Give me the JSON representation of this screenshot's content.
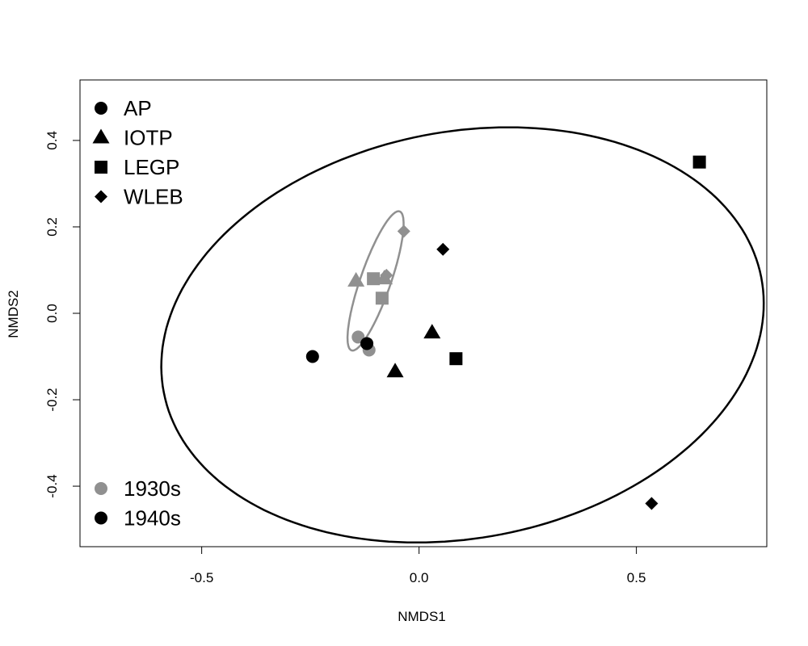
{
  "chart_data": {
    "type": "scatter",
    "title": "",
    "xlabel": "NMDS1",
    "ylabel": "NMDS2",
    "xlim": [
      -0.78,
      0.8
    ],
    "ylim": [
      -0.54,
      0.54
    ],
    "xticks": [
      -0.5,
      0.0,
      0.5
    ],
    "xtick_labels": [
      "-0.5",
      "0.0",
      "0.5"
    ],
    "yticks": [
      -0.4,
      -0.2,
      0.0,
      0.2,
      0.4
    ],
    "ytick_labels": [
      "-0.4",
      "-0.2",
      "0.0",
      "0.2",
      "0.4"
    ],
    "grid": false,
    "shape_legend": {
      "placement": "top-left",
      "entries": [
        {
          "label": "AP",
          "shape": "circle"
        },
        {
          "label": "IOTP",
          "shape": "triangle"
        },
        {
          "label": "LEGP",
          "shape": "square"
        },
        {
          "label": "WLEB",
          "shape": "diamond"
        }
      ]
    },
    "color_legend": {
      "placement": "bottom-left",
      "entries": [
        {
          "label": "1930s",
          "color": "#909090"
        },
        {
          "label": "1940s",
          "color": "#000000"
        }
      ]
    },
    "series": [
      {
        "name": "1930s",
        "color": "#909090",
        "points": [
          {
            "group": "AP",
            "shape": "circle",
            "x": -0.14,
            "y": -0.055
          },
          {
            "group": "AP",
            "shape": "circle",
            "x": -0.115,
            "y": -0.085
          },
          {
            "group": "IOTP",
            "shape": "triangle",
            "x": -0.145,
            "y": 0.075
          },
          {
            "group": "IOTP",
            "shape": "triangle",
            "x": -0.08,
            "y": 0.08
          },
          {
            "group": "LEGP",
            "shape": "square",
            "x": -0.105,
            "y": 0.08
          },
          {
            "group": "LEGP",
            "shape": "square",
            "x": -0.085,
            "y": 0.035
          },
          {
            "group": "WLEB",
            "shape": "diamond",
            "x": -0.075,
            "y": 0.088
          },
          {
            "group": "WLEB",
            "shape": "diamond",
            "x": -0.035,
            "y": 0.19
          }
        ],
        "ellipse": {
          "center_x": -0.1,
          "center_y": 0.075,
          "semi_major": 0.17,
          "semi_minor": 0.035,
          "angle_deg": 71
        }
      },
      {
        "name": "1940s",
        "color": "#000000",
        "points": [
          {
            "group": "AP",
            "shape": "circle",
            "x": -0.245,
            "y": -0.1
          },
          {
            "group": "AP",
            "shape": "circle",
            "x": -0.12,
            "y": -0.07
          },
          {
            "group": "IOTP",
            "shape": "triangle",
            "x": -0.055,
            "y": -0.135
          },
          {
            "group": "IOTP",
            "shape": "triangle",
            "x": 0.03,
            "y": -0.045
          },
          {
            "group": "LEGP",
            "shape": "square",
            "x": 0.085,
            "y": -0.105
          },
          {
            "group": "LEGP",
            "shape": "square",
            "x": 0.645,
            "y": 0.35
          },
          {
            "group": "WLEB",
            "shape": "diamond",
            "x": 0.055,
            "y": 0.148
          },
          {
            "group": "WLEB",
            "shape": "diamond",
            "x": 0.535,
            "y": -0.44
          }
        ],
        "ellipse": {
          "center_x": 0.1,
          "center_y": -0.05,
          "semi_major": 0.7,
          "semi_minor": 0.47,
          "angle_deg": 11
        }
      }
    ]
  }
}
